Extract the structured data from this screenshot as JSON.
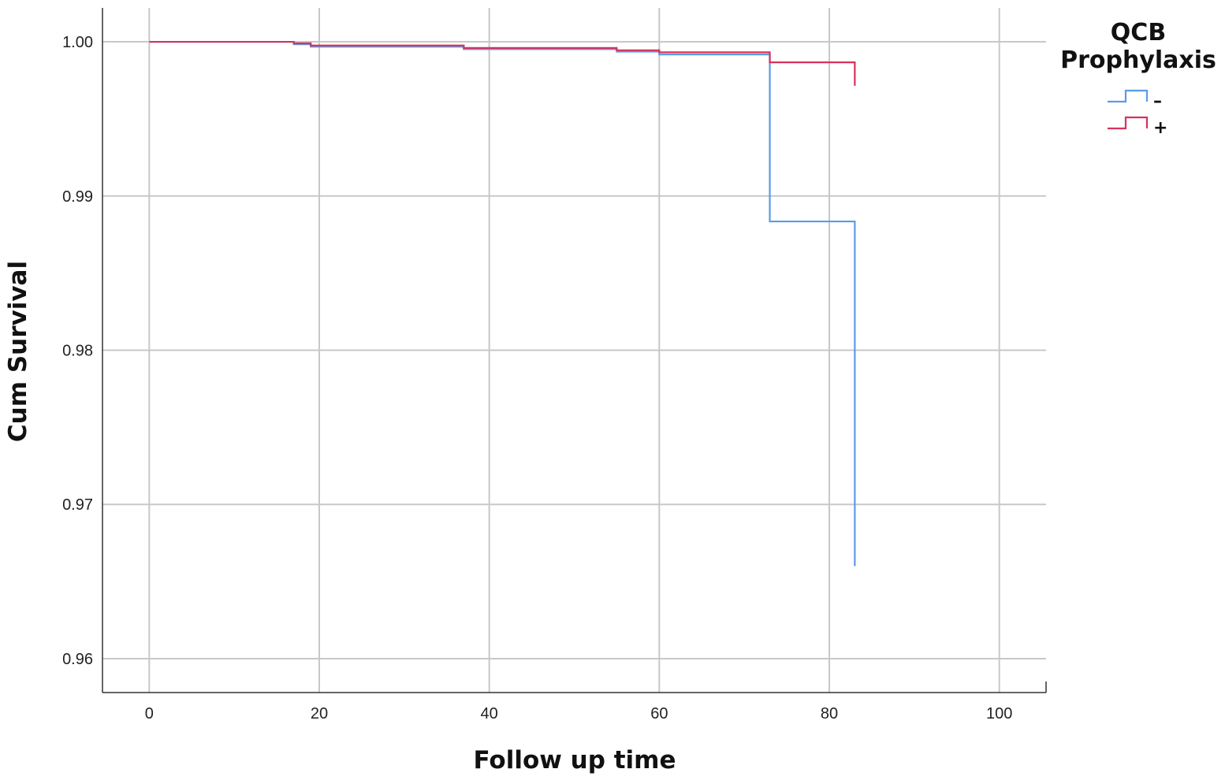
{
  "chart_data": {
    "type": "line",
    "step": true,
    "xlabel": "Follow up time",
    "ylabel": "Cum Survival",
    "xlim": [
      -5.5,
      105.5
    ],
    "ylim": [
      0.9578,
      1.0022
    ],
    "x_ticks": [
      0,
      20,
      40,
      60,
      80,
      100
    ],
    "x_tick_labels": [
      "0",
      "20",
      "40",
      "60",
      "80",
      "100"
    ],
    "y_ticks": [
      0.96,
      0.97,
      0.98,
      0.99,
      1.0
    ],
    "y_tick_labels": [
      "0.96",
      "0.97",
      "0.98",
      "0.99",
      "1.00"
    ],
    "grid": true,
    "legend": {
      "title_lines": [
        "QCB",
        "Prophylaxis"
      ],
      "placement": "top-right outside plot"
    },
    "series": [
      {
        "name": "–",
        "color": "#5b9be8",
        "x": [
          0,
          17,
          19,
          37,
          55,
          60,
          73,
          83,
          83
        ],
        "y": [
          1.0,
          0.99984,
          0.99968,
          0.99952,
          0.99936,
          0.99918,
          0.98835,
          0.98835,
          0.966
        ]
      },
      {
        "name": "+",
        "color": "#d8325a",
        "x": [
          0,
          17,
          19,
          37,
          55,
          60,
          73,
          83,
          83
        ],
        "y": [
          1.0,
          0.9999,
          0.99976,
          0.9996,
          0.99945,
          0.99932,
          0.99867,
          0.99867,
          0.99715
        ]
      }
    ]
  }
}
